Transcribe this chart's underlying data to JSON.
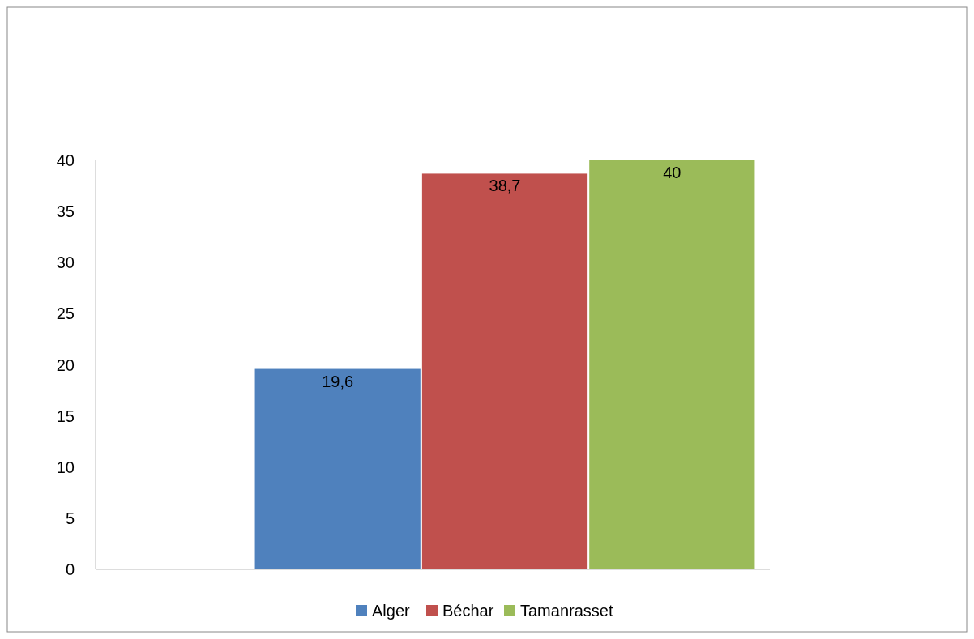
{
  "chart_data": {
    "type": "bar",
    "categories": [
      null
    ],
    "series": [
      {
        "name": "Alger",
        "color": "#4f81bd",
        "values": [
          19.6
        ],
        "value_labels": [
          "19,6"
        ]
      },
      {
        "name": "Béchar",
        "color": "#c0504d",
        "values": [
          38.7
        ],
        "value_labels": [
          "38,7"
        ]
      },
      {
        "name": "Tamanrasset",
        "color": "#9bbb59",
        "values": [
          40
        ],
        "value_labels": [
          "40"
        ]
      }
    ],
    "ylim": [
      0,
      40
    ],
    "yticks": [
      0,
      5,
      10,
      15,
      20,
      25,
      30,
      35,
      40
    ],
    "legend": "bottom"
  }
}
